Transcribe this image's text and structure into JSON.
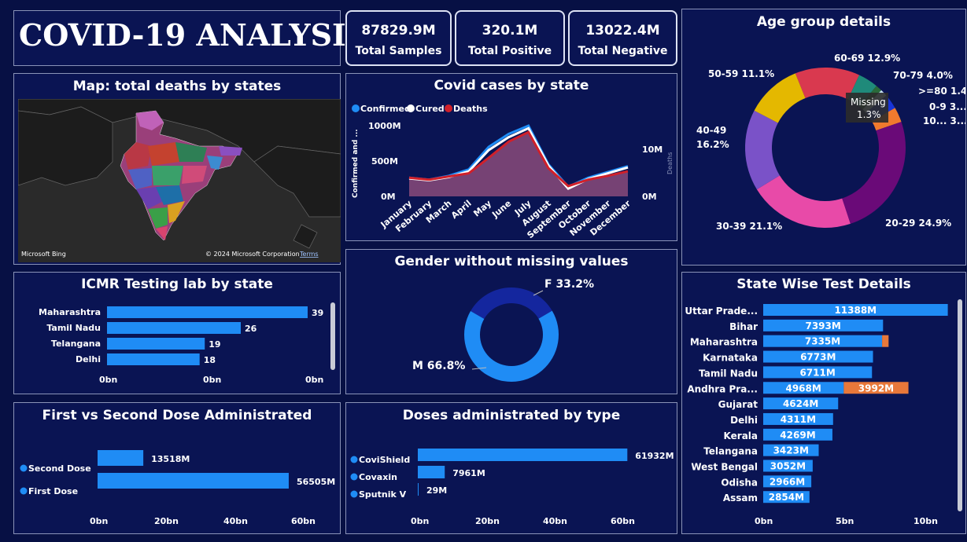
{
  "title": "COVID-19 ANALYSIS",
  "kpis": [
    {
      "value": "87829.9M",
      "label": "Total Samples"
    },
    {
      "value": "320.1M",
      "label": "Total Positive"
    },
    {
      "value": "13022.4M",
      "label": "Total Negative"
    }
  ],
  "map": {
    "title": "Map: total deaths by states",
    "attribution_logo": "Microsoft Bing",
    "copyright": "© 2024 Microsoft Corporation",
    "terms": "Terms"
  },
  "cases": {
    "title": "Covid cases by state",
    "legend": [
      "Confirmed",
      "Cured",
      "Deaths"
    ],
    "legend_colors": [
      "#1f8cf5",
      "#ffffff",
      "#d0202a"
    ],
    "left_ticks": [
      "1000M",
      "500M",
      "0M"
    ],
    "right_ticks": [
      "10M",
      "0M"
    ],
    "ylabel": "Confirmed and ...",
    "ylabel_right": "Deaths",
    "months": [
      "January",
      "February",
      "March",
      "April",
      "May",
      "June",
      "July",
      "August",
      "September",
      "October",
      "November",
      "December"
    ]
  },
  "icmr": {
    "title": "ICMR Testing lab by state",
    "axis": [
      "0bn",
      "0bn",
      "0bn"
    ]
  },
  "gender": {
    "title": "Gender without missing values",
    "f_label": "F 33.2%",
    "m_label": "M 66.8%"
  },
  "age": {
    "title": "Age group details",
    "labels": {
      "a6069": "60-69 12.9%",
      "a5059": "50-59 11.1%",
      "a7079": "70-79 4.0%",
      "a80": ">=80 1.4%",
      "missing": "Missing",
      "missing_pct": "1.3%",
      "a09": "0-9 3....",
      "a10": "10... 3....",
      "a4049a": "40-49",
      "a4049b": "16.2%",
      "a3039": "30-39 21.1%",
      "a2029": "20-29 24.9%"
    }
  },
  "doses": {
    "title": "First vs Second Dose Administrated",
    "axis": [
      "0bn",
      "20bn",
      "40bn",
      "60bn"
    ]
  },
  "types": {
    "title": "Doses administrated by type",
    "axis": [
      "0bn",
      "20bn",
      "40bn",
      "60bn"
    ]
  },
  "statewise": {
    "title": "State Wise Test Details",
    "axis": [
      "0bn",
      "5bn",
      "10bn"
    ]
  },
  "chart_data": [
    {
      "type": "area",
      "title": "Covid cases by state",
      "x": [
        "January",
        "February",
        "March",
        "April",
        "May",
        "June",
        "July",
        "August",
        "September",
        "October",
        "November",
        "December"
      ],
      "series": [
        {
          "name": "Confirmed",
          "values": [
            290,
            260,
            320,
            420,
            770,
            970,
            1100,
            500,
            150,
            290,
            380,
            470
          ]
        },
        {
          "name": "Cured",
          "values": [
            280,
            250,
            300,
            390,
            720,
            920,
            1060,
            480,
            120,
            270,
            360,
            450
          ]
        },
        {
          "name": "Deaths",
          "values": [
            290,
            260,
            310,
            360,
            600,
            850,
            1000,
            440,
            160,
            260,
            320,
            390
          ]
        }
      ],
      "ylim": [
        0,
        1000
      ]
    },
    {
      "type": "bar",
      "title": "ICMR Testing lab by state",
      "categories": [
        "Maharashtra",
        "Tamil Nadu",
        "Telangana",
        "Delhi"
      ],
      "values": [
        39,
        26,
        19,
        18
      ]
    },
    {
      "type": "pie",
      "title": "Gender without missing values",
      "categories": [
        "M",
        "F"
      ],
      "values": [
        66.8,
        33.2
      ],
      "colors": [
        "#1f8cf5",
        "#14269e"
      ]
    },
    {
      "type": "pie",
      "title": "Age group details",
      "categories": [
        "60-69",
        "70-79",
        "Missing",
        ">=80",
        "0-9",
        "10-19",
        "20-29",
        "30-39",
        "40-49",
        "50-59"
      ],
      "values": [
        12.9,
        4.0,
        1.3,
        1.4,
        3.0,
        3.0,
        24.9,
        21.1,
        16.2,
        11.1
      ],
      "colors": [
        "#d9394f",
        "#1f8a7a",
        "#2a6a3a",
        "#c8e3f5",
        "#1834d8",
        "#f07a2e",
        "#6a0a78",
        "#e84aa8",
        "#7a52c8",
        "#e4b800"
      ]
    },
    {
      "type": "bar",
      "title": "First vs Second Dose Administrated",
      "categories": [
        "Second Dose",
        "First Dose"
      ],
      "values": [
        13518,
        56505
      ],
      "labels": [
        "13518M",
        "56505M"
      ],
      "xlim": [
        0,
        70000
      ]
    },
    {
      "type": "bar",
      "title": "Doses administrated by type",
      "categories": [
        "CoviShield",
        "Covaxin",
        "Sputnik V"
      ],
      "values": [
        61932,
        7961,
        29
      ],
      "labels": [
        "61932M",
        "7961M",
        "29M"
      ],
      "xlim": [
        0,
        70000
      ]
    },
    {
      "type": "bar",
      "title": "State Wise Test Details",
      "categories": [
        "Uttar Prade...",
        "Bihar",
        "Maharashtra",
        "Karnataka",
        "Tamil Nadu",
        "Andhra Pra...",
        "Gujarat",
        "Delhi",
        "Kerala",
        "Telangana",
        "West Bengal",
        "Odisha",
        "Assam"
      ],
      "series": [
        {
          "values": [
            11388,
            7393,
            7335,
            6773,
            6711,
            4968,
            4624,
            4311,
            4269,
            3423,
            3052,
            2966,
            2854
          ],
          "labels": [
            "11388M",
            "7393M",
            "7335M",
            "6773M",
            "6711M",
            "4968M",
            "4624M",
            "4311M",
            "4269M",
            "3423M",
            "3052M",
            "2966M",
            "2854M"
          ]
        },
        {
          "values": [
            0,
            0,
            400,
            0,
            0,
            3992,
            0,
            0,
            0,
            0,
            0,
            0,
            0
          ],
          "labels": [
            "",
            "",
            "",
            "",
            "",
            "3992M",
            "",
            "",
            "",
            "",
            "",
            "",
            ""
          ]
        }
      ],
      "xlim": [
        0,
        12000
      ]
    }
  ]
}
